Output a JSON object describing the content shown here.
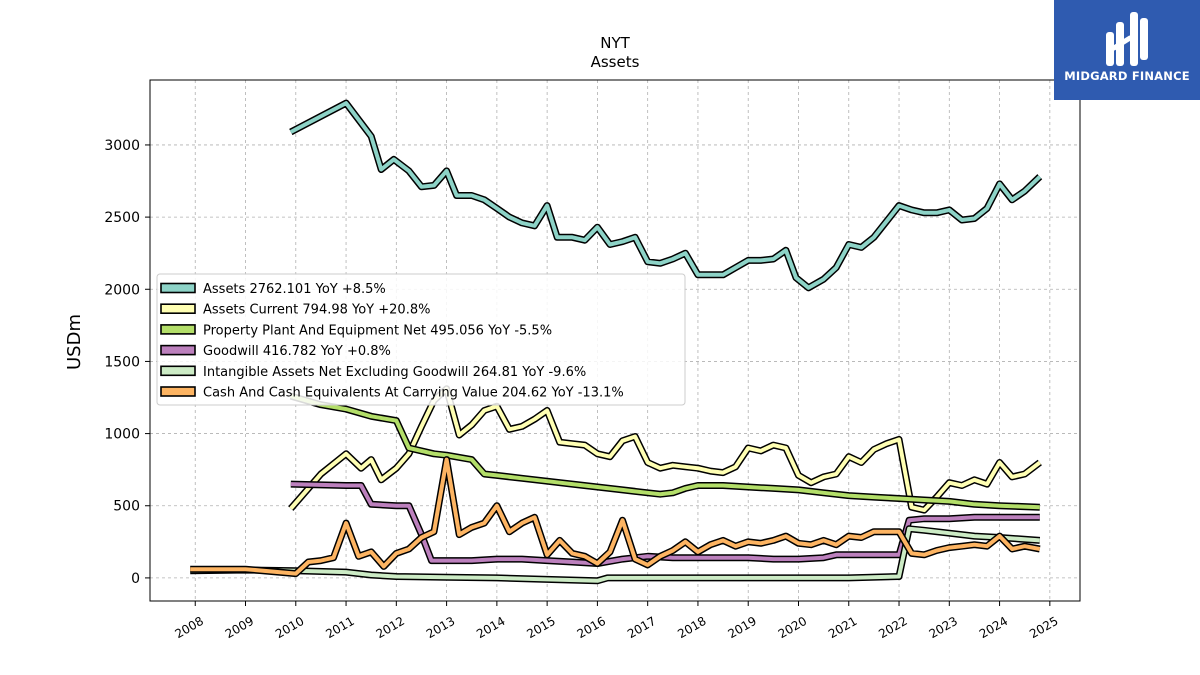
{
  "chart_data": {
    "type": "line",
    "title": "NYT",
    "subtitle": "Assets",
    "ylabel": "USDm",
    "xlabel": "",
    "xlim": [
      2007.1,
      2025.6
    ],
    "ylim": [
      -160,
      3450
    ],
    "yticks": [
      0,
      500,
      1000,
      1500,
      2000,
      2500,
      3000
    ],
    "xticks": [
      2008,
      2009,
      2010,
      2011,
      2012,
      2013,
      2014,
      2015,
      2016,
      2017,
      2018,
      2019,
      2020,
      2021,
      2022,
      2023,
      2024,
      2025
    ],
    "grid": true,
    "legend_position": "center-left",
    "series": [
      {
        "name": "Assets",
        "legend": "Assets  2762.101 YoY +8.5%",
        "color": "#8dd3c7",
        "points": [
          [
            2009.9,
            3090
          ],
          [
            2011.0,
            3290
          ],
          [
            2011.5,
            3060
          ],
          [
            2011.7,
            2830
          ],
          [
            2011.95,
            2900
          ],
          [
            2012.25,
            2820
          ],
          [
            2012.5,
            2710
          ],
          [
            2012.75,
            2720
          ],
          [
            2013.0,
            2820
          ],
          [
            2013.2,
            2650
          ],
          [
            2013.5,
            2650
          ],
          [
            2013.75,
            2620
          ],
          [
            2014.0,
            2560
          ],
          [
            2014.25,
            2500
          ],
          [
            2014.5,
            2460
          ],
          [
            2014.75,
            2440
          ],
          [
            2015.0,
            2580
          ],
          [
            2015.2,
            2360
          ],
          [
            2015.5,
            2360
          ],
          [
            2015.75,
            2340
          ],
          [
            2016.0,
            2430
          ],
          [
            2016.25,
            2310
          ],
          [
            2016.5,
            2330
          ],
          [
            2016.75,
            2360
          ],
          [
            2017.0,
            2190
          ],
          [
            2017.25,
            2180
          ],
          [
            2017.5,
            2210
          ],
          [
            2017.75,
            2250
          ],
          [
            2018.0,
            2100
          ],
          [
            2018.5,
            2100
          ],
          [
            2018.75,
            2150
          ],
          [
            2019.0,
            2200
          ],
          [
            2019.25,
            2200
          ],
          [
            2019.5,
            2210
          ],
          [
            2019.75,
            2270
          ],
          [
            2019.95,
            2080
          ],
          [
            2020.2,
            2010
          ],
          [
            2020.5,
            2070
          ],
          [
            2020.75,
            2150
          ],
          [
            2021.0,
            2310
          ],
          [
            2021.25,
            2290
          ],
          [
            2021.5,
            2360
          ],
          [
            2021.75,
            2470
          ],
          [
            2022.0,
            2580
          ],
          [
            2022.25,
            2550
          ],
          [
            2022.5,
            2530
          ],
          [
            2022.75,
            2530
          ],
          [
            2023.0,
            2550
          ],
          [
            2023.25,
            2480
          ],
          [
            2023.5,
            2490
          ],
          [
            2023.75,
            2560
          ],
          [
            2024.0,
            2730
          ],
          [
            2024.25,
            2620
          ],
          [
            2024.5,
            2680
          ],
          [
            2024.8,
            2780
          ]
        ]
      },
      {
        "name": "Assets Current",
        "legend": "Assets Current  794.98 YoY +20.8%",
        "color": "#ffffb3",
        "points": [
          [
            2009.9,
            480
          ],
          [
            2010.25,
            620
          ],
          [
            2010.5,
            720
          ],
          [
            2011.0,
            860
          ],
          [
            2011.3,
            760
          ],
          [
            2011.5,
            820
          ],
          [
            2011.7,
            680
          ],
          [
            2012.0,
            760
          ],
          [
            2012.25,
            860
          ],
          [
            2012.5,
            1050
          ],
          [
            2012.75,
            1230
          ],
          [
            2013.0,
            1310
          ],
          [
            2013.25,
            990
          ],
          [
            2013.5,
            1060
          ],
          [
            2013.75,
            1160
          ],
          [
            2014.0,
            1190
          ],
          [
            2014.25,
            1030
          ],
          [
            2014.5,
            1050
          ],
          [
            2014.75,
            1100
          ],
          [
            2015.0,
            1160
          ],
          [
            2015.25,
            940
          ],
          [
            2015.5,
            930
          ],
          [
            2015.75,
            920
          ],
          [
            2016.0,
            860
          ],
          [
            2016.25,
            840
          ],
          [
            2016.5,
            950
          ],
          [
            2016.75,
            980
          ],
          [
            2017.0,
            800
          ],
          [
            2017.25,
            760
          ],
          [
            2017.5,
            780
          ],
          [
            2017.75,
            770
          ],
          [
            2018.0,
            760
          ],
          [
            2018.25,
            740
          ],
          [
            2018.5,
            730
          ],
          [
            2018.75,
            770
          ],
          [
            2019.0,
            900
          ],
          [
            2019.25,
            880
          ],
          [
            2019.5,
            920
          ],
          [
            2019.75,
            900
          ],
          [
            2020.0,
            710
          ],
          [
            2020.25,
            660
          ],
          [
            2020.5,
            700
          ],
          [
            2020.75,
            720
          ],
          [
            2021.0,
            840
          ],
          [
            2021.25,
            800
          ],
          [
            2021.5,
            890
          ],
          [
            2021.75,
            930
          ],
          [
            2022.0,
            960
          ],
          [
            2022.25,
            490
          ],
          [
            2022.5,
            470
          ],
          [
            2022.75,
            560
          ],
          [
            2023.0,
            660
          ],
          [
            2023.25,
            640
          ],
          [
            2023.5,
            680
          ],
          [
            2023.75,
            650
          ],
          [
            2024.0,
            800
          ],
          [
            2024.25,
            700
          ],
          [
            2024.5,
            720
          ],
          [
            2024.8,
            800
          ]
        ]
      },
      {
        "name": "Property Plant And Equipment Net",
        "legend": "Property Plant And Equipment Net  495.056 YoY -5.5%",
        "color": "#b3de69",
        "points": [
          [
            2009.9,
            1260
          ],
          [
            2010.5,
            1200
          ],
          [
            2011.0,
            1170
          ],
          [
            2011.5,
            1120
          ],
          [
            2012.0,
            1090
          ],
          [
            2012.25,
            900
          ],
          [
            2012.75,
            860
          ],
          [
            2013.0,
            850
          ],
          [
            2013.5,
            820
          ],
          [
            2013.75,
            720
          ],
          [
            2014.0,
            710
          ],
          [
            2014.5,
            690
          ],
          [
            2015.0,
            670
          ],
          [
            2015.5,
            650
          ],
          [
            2016.0,
            630
          ],
          [
            2016.5,
            610
          ],
          [
            2017.0,
            590
          ],
          [
            2017.25,
            580
          ],
          [
            2017.5,
            590
          ],
          [
            2017.75,
            620
          ],
          [
            2018.0,
            640
          ],
          [
            2018.5,
            640
          ],
          [
            2019.0,
            630
          ],
          [
            2019.5,
            620
          ],
          [
            2020.0,
            610
          ],
          [
            2020.5,
            590
          ],
          [
            2021.0,
            570
          ],
          [
            2021.5,
            560
          ],
          [
            2022.0,
            550
          ],
          [
            2022.5,
            540
          ],
          [
            2023.0,
            530
          ],
          [
            2023.5,
            510
          ],
          [
            2024.0,
            500
          ],
          [
            2024.8,
            490
          ]
        ]
      },
      {
        "name": "Goodwill",
        "legend": "Goodwill  416.782 YoY +0.8%",
        "color": "#bc80bd",
        "points": [
          [
            2009.9,
            650
          ],
          [
            2011.0,
            640
          ],
          [
            2011.3,
            640
          ],
          [
            2011.5,
            510
          ],
          [
            2012.0,
            500
          ],
          [
            2012.25,
            500
          ],
          [
            2012.5,
            300
          ],
          [
            2012.7,
            120
          ],
          [
            2013.0,
            120
          ],
          [
            2013.5,
            120
          ],
          [
            2014.0,
            130
          ],
          [
            2014.5,
            130
          ],
          [
            2015.0,
            120
          ],
          [
            2015.5,
            110
          ],
          [
            2016.0,
            100
          ],
          [
            2016.5,
            130
          ],
          [
            2017.0,
            150
          ],
          [
            2017.5,
            140
          ],
          [
            2018.0,
            140
          ],
          [
            2018.5,
            140
          ],
          [
            2019.0,
            140
          ],
          [
            2019.5,
            130
          ],
          [
            2020.0,
            130
          ],
          [
            2020.5,
            140
          ],
          [
            2020.75,
            160
          ],
          [
            2021.0,
            160
          ],
          [
            2021.5,
            160
          ],
          [
            2022.0,
            160
          ],
          [
            2022.2,
            400
          ],
          [
            2022.5,
            410
          ],
          [
            2023.0,
            410
          ],
          [
            2023.5,
            420
          ],
          [
            2024.0,
            420
          ],
          [
            2024.8,
            420
          ]
        ]
      },
      {
        "name": "Intangible Assets Net Excluding Goodwill",
        "legend": "Intangible Assets Net Excluding Goodwill  264.81 YoY -9.6%",
        "color": "#ccebc5",
        "points": [
          [
            2007.9,
            50
          ],
          [
            2009.0,
            55
          ],
          [
            2010.0,
            50
          ],
          [
            2011.0,
            40
          ],
          [
            2011.5,
            20
          ],
          [
            2012.0,
            10
          ],
          [
            2013.0,
            5
          ],
          [
            2014.0,
            0
          ],
          [
            2015.0,
            -10
          ],
          [
            2016.0,
            -20
          ],
          [
            2016.2,
            0
          ],
          [
            2017.0,
            0
          ],
          [
            2018.0,
            0
          ],
          [
            2019.0,
            0
          ],
          [
            2020.0,
            0
          ],
          [
            2021.0,
            0
          ],
          [
            2022.0,
            10
          ],
          [
            2022.2,
            340
          ],
          [
            2022.5,
            330
          ],
          [
            2023.0,
            310
          ],
          [
            2023.5,
            290
          ],
          [
            2024.0,
            280
          ],
          [
            2024.8,
            260
          ]
        ]
      },
      {
        "name": "Cash And Cash Equivalents At Carrying Value",
        "legend": "Cash And Cash Equivalents At Carrying Value  204.62 YoY -13.1%",
        "color": "#fdb462",
        "points": [
          [
            2007.9,
            60
          ],
          [
            2009.0,
            60
          ],
          [
            2010.0,
            30
          ],
          [
            2010.25,
            110
          ],
          [
            2010.5,
            120
          ],
          [
            2010.75,
            140
          ],
          [
            2011.0,
            380
          ],
          [
            2011.25,
            150
          ],
          [
            2011.5,
            180
          ],
          [
            2011.75,
            80
          ],
          [
            2012.0,
            170
          ],
          [
            2012.25,
            200
          ],
          [
            2012.5,
            280
          ],
          [
            2012.75,
            320
          ],
          [
            2013.0,
            820
          ],
          [
            2013.25,
            300
          ],
          [
            2013.5,
            350
          ],
          [
            2013.75,
            380
          ],
          [
            2014.0,
            500
          ],
          [
            2014.25,
            320
          ],
          [
            2014.5,
            380
          ],
          [
            2014.75,
            420
          ],
          [
            2015.0,
            160
          ],
          [
            2015.25,
            260
          ],
          [
            2015.5,
            170
          ],
          [
            2015.75,
            150
          ],
          [
            2016.0,
            100
          ],
          [
            2016.25,
            180
          ],
          [
            2016.5,
            400
          ],
          [
            2016.75,
            130
          ],
          [
            2017.0,
            90
          ],
          [
            2017.25,
            150
          ],
          [
            2017.5,
            190
          ],
          [
            2017.75,
            250
          ],
          [
            2018.0,
            180
          ],
          [
            2018.25,
            230
          ],
          [
            2018.5,
            260
          ],
          [
            2018.75,
            220
          ],
          [
            2019.0,
            250
          ],
          [
            2019.25,
            240
          ],
          [
            2019.5,
            260
          ],
          [
            2019.75,
            290
          ],
          [
            2020.0,
            240
          ],
          [
            2020.25,
            230
          ],
          [
            2020.5,
            260
          ],
          [
            2020.75,
            230
          ],
          [
            2021.0,
            290
          ],
          [
            2021.25,
            280
          ],
          [
            2021.5,
            320
          ],
          [
            2021.75,
            320
          ],
          [
            2022.0,
            320
          ],
          [
            2022.25,
            170
          ],
          [
            2022.5,
            160
          ],
          [
            2022.75,
            190
          ],
          [
            2023.0,
            210
          ],
          [
            2023.25,
            220
          ],
          [
            2023.5,
            230
          ],
          [
            2023.75,
            220
          ],
          [
            2024.0,
            290
          ],
          [
            2024.25,
            200
          ],
          [
            2024.5,
            220
          ],
          [
            2024.8,
            200
          ]
        ]
      }
    ]
  },
  "logo": {
    "text": "MIDGARD FINANCE",
    "color": "#2f5bb0"
  }
}
